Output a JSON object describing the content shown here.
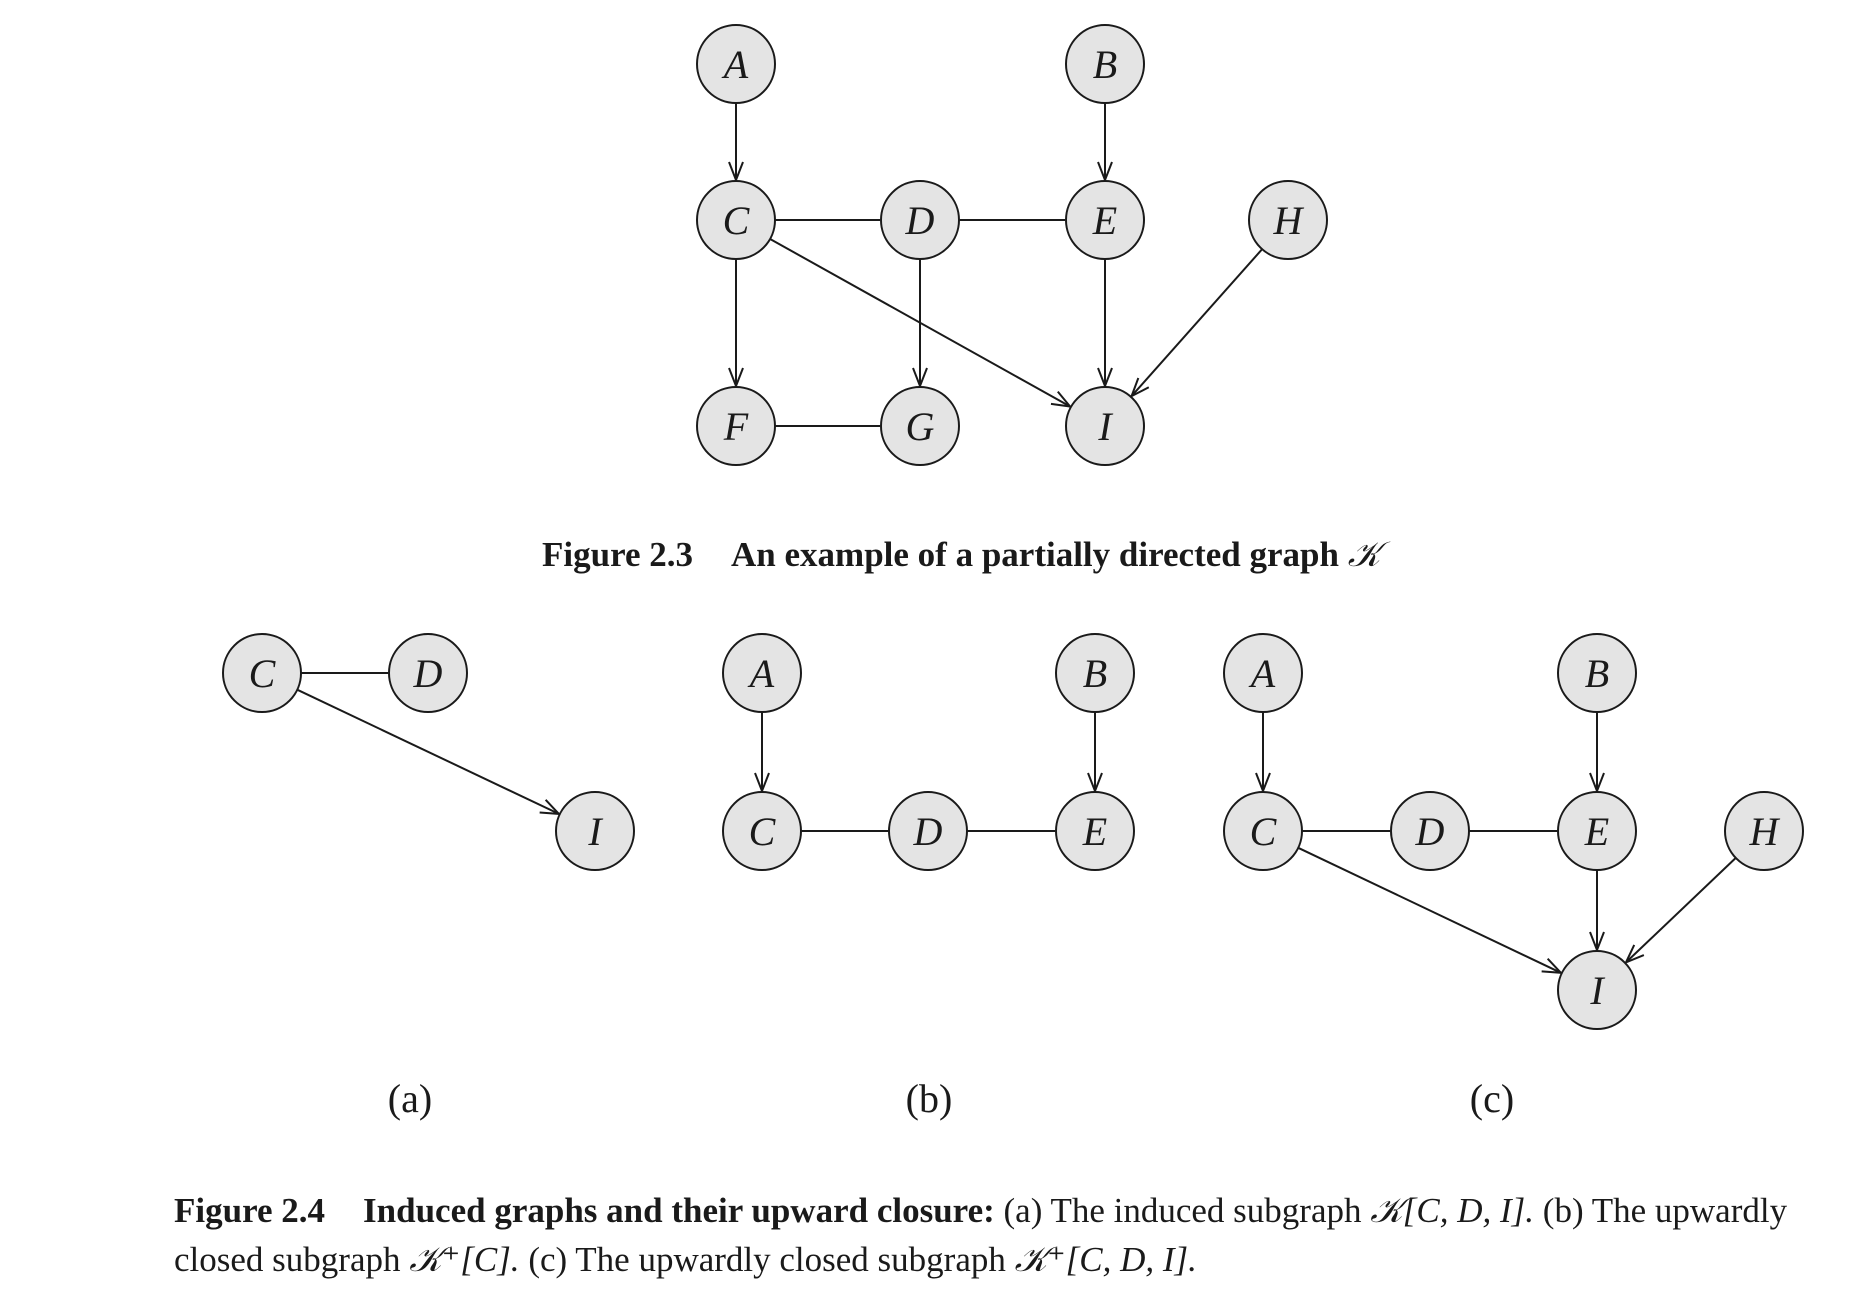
{
  "figure_2_3": {
    "nodes": [
      {
        "id": "A",
        "label": "A"
      },
      {
        "id": "B",
        "label": "B"
      },
      {
        "id": "C",
        "label": "C"
      },
      {
        "id": "D",
        "label": "D"
      },
      {
        "id": "E",
        "label": "E"
      },
      {
        "id": "H",
        "label": "H"
      },
      {
        "id": "F",
        "label": "F"
      },
      {
        "id": "G",
        "label": "G"
      },
      {
        "id": "I",
        "label": "I"
      }
    ],
    "edges": [
      {
        "from": "A",
        "to": "C",
        "directed": true
      },
      {
        "from": "B",
        "to": "E",
        "directed": true
      },
      {
        "from": "C",
        "to": "D",
        "directed": false
      },
      {
        "from": "D",
        "to": "E",
        "directed": false
      },
      {
        "from": "C",
        "to": "F",
        "directed": true
      },
      {
        "from": "D",
        "to": "G",
        "directed": true
      },
      {
        "from": "C",
        "to": "I",
        "directed": true
      },
      {
        "from": "E",
        "to": "I",
        "directed": true
      },
      {
        "from": "H",
        "to": "I",
        "directed": true
      },
      {
        "from": "F",
        "to": "G",
        "directed": false
      }
    ],
    "caption_number": "Figure 2.3",
    "caption_text": "An example of a partially directed graph",
    "caption_symbol": "𝒦"
  },
  "figure_2_4": {
    "subfigures": [
      {
        "label": "(a)",
        "nodes": [
          {
            "id": "C",
            "label": "C"
          },
          {
            "id": "D",
            "label": "D"
          },
          {
            "id": "I",
            "label": "I"
          }
        ],
        "edges": [
          {
            "from": "C",
            "to": "D",
            "directed": false
          },
          {
            "from": "C",
            "to": "I",
            "directed": true
          }
        ]
      },
      {
        "label": "(b)",
        "nodes": [
          {
            "id": "A",
            "label": "A"
          },
          {
            "id": "B",
            "label": "B"
          },
          {
            "id": "C",
            "label": "C"
          },
          {
            "id": "D",
            "label": "D"
          },
          {
            "id": "E",
            "label": "E"
          }
        ],
        "edges": [
          {
            "from": "A",
            "to": "C",
            "directed": true
          },
          {
            "from": "B",
            "to": "E",
            "directed": true
          },
          {
            "from": "C",
            "to": "D",
            "directed": false
          },
          {
            "from": "D",
            "to": "E",
            "directed": false
          }
        ]
      },
      {
        "label": "(c)",
        "nodes": [
          {
            "id": "A",
            "label": "A"
          },
          {
            "id": "B",
            "label": "B"
          },
          {
            "id": "C",
            "label": "C"
          },
          {
            "id": "D",
            "label": "D"
          },
          {
            "id": "E",
            "label": "E"
          },
          {
            "id": "H",
            "label": "H"
          },
          {
            "id": "I",
            "label": "I"
          }
        ],
        "edges": [
          {
            "from": "A",
            "to": "C",
            "directed": true
          },
          {
            "from": "B",
            "to": "E",
            "directed": true
          },
          {
            "from": "C",
            "to": "D",
            "directed": false
          },
          {
            "from": "D",
            "to": "E",
            "directed": false
          },
          {
            "from": "C",
            "to": "I",
            "directed": true
          },
          {
            "from": "E",
            "to": "I",
            "directed": true
          },
          {
            "from": "H",
            "to": "I",
            "directed": true
          }
        ]
      }
    ],
    "caption_number": "Figure 2.4",
    "caption_title": "Induced graphs and their upward closure:",
    "caption_part_a": "(a) The induced subgraph",
    "caption_math_a": "𝒦[C, D, I].",
    "caption_part_b": "(b) The upwardly closed subgraph",
    "caption_math_b": "𝒦⁺[C].",
    "caption_part_c": "(c) The upwardly closed subgraph",
    "caption_math_c": "𝒦⁺[C, D, I]."
  }
}
